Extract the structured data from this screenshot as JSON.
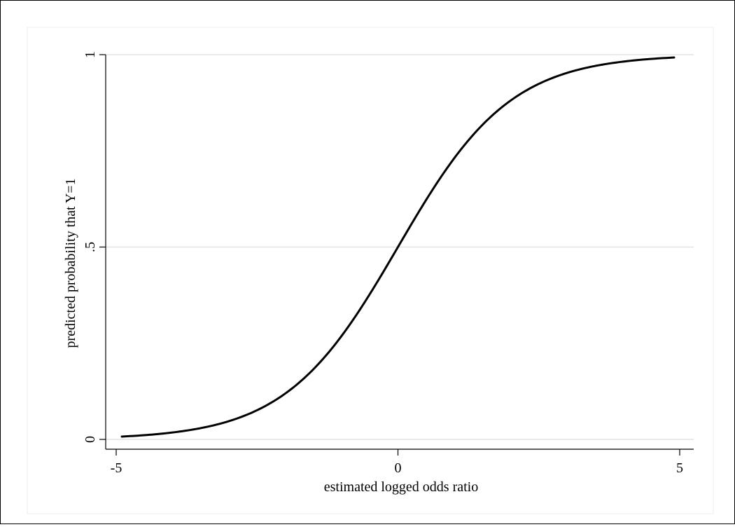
{
  "chart_data": {
    "type": "line",
    "title": "",
    "xlabel": "estimated logged odds ratio",
    "ylabel": "predicted probability that Y=1",
    "xlim": [
      -5,
      5
    ],
    "ylim": [
      0,
      1
    ],
    "xticks": [
      {
        "value": -5,
        "label": "-5"
      },
      {
        "value": 0,
        "label": "0"
      },
      {
        "value": 5,
        "label": "5"
      }
    ],
    "yticks": [
      {
        "value": 0,
        "label": "0"
      },
      {
        "value": 0.5,
        "label": ".5"
      },
      {
        "value": 1,
        "label": "1"
      }
    ],
    "grid": "horizontal",
    "legend": "none",
    "series": [
      {
        "color": "#000000",
        "x": [
          -4.9,
          -4.5,
          -4.0,
          -3.5,
          -3.0,
          -2.5,
          -2.0,
          -1.5,
          -1.0,
          -0.5,
          0.0,
          0.5,
          1.0,
          1.5,
          2.0,
          2.5,
          3.0,
          3.5,
          4.0,
          4.5,
          4.9
        ],
        "y": [
          0.007,
          0.011,
          0.018,
          0.029,
          0.047,
          0.076,
          0.119,
          0.182,
          0.269,
          0.378,
          0.5,
          0.622,
          0.731,
          0.818,
          0.881,
          0.924,
          0.953,
          0.971,
          0.982,
          0.989,
          0.993
        ]
      }
    ]
  }
}
